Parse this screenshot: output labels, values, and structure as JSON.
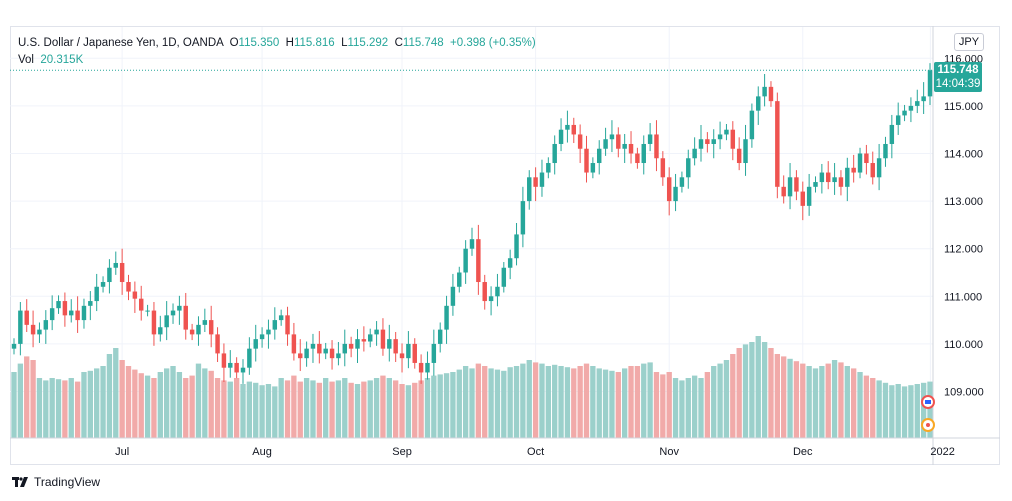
{
  "legend": {
    "symbol": "U.S. Dollar / Japanese Yen, 1D, OANDA",
    "o_label": "O",
    "o_value": "115.350",
    "h_label": "H",
    "h_value": "115.816",
    "l_label": "L",
    "l_value": "115.292",
    "c_label": "C",
    "c_value": "115.748",
    "change": "+0.398 (+0.35%)",
    "vol_label": "Vol",
    "vol_value": "20.315K"
  },
  "currency_button": "JPY",
  "current_price": {
    "price": "115.748",
    "countdown": "14:04:39"
  },
  "brand": "TradingView",
  "colors": {
    "up": "#26a69a",
    "down": "#ef5350",
    "up_vol": "#9bd0cb",
    "down_vol": "#f1aaa9",
    "grid": "#f0f3fa",
    "axis_text": "#131722"
  },
  "chart_data": {
    "type": "candlestick",
    "ylim": [
      108.0,
      116.0
    ],
    "y_ticks": [
      "116.000",
      "115.000",
      "114.000",
      "113.000",
      "112.000",
      "111.000",
      "110.000",
      "109.000"
    ],
    "y_tick_values": [
      116,
      115,
      114,
      113,
      112,
      111,
      110,
      109
    ],
    "x_ticks": [
      {
        "label": "Jul",
        "index": 17
      },
      {
        "label": "Aug",
        "index": 39
      },
      {
        "label": "Sep",
        "index": 61
      },
      {
        "label": "Oct",
        "index": 82
      },
      {
        "label": "Nov",
        "index": 103
      },
      {
        "label": "Dec",
        "index": 124
      },
      {
        "label": "2022",
        "index": 145
      }
    ],
    "candles_close": [
      110.0,
      110.7,
      110.4,
      110.2,
      110.3,
      110.5,
      110.75,
      110.9,
      110.6,
      110.7,
      110.5,
      110.8,
      110.9,
      111.2,
      111.3,
      111.6,
      111.7,
      111.3,
      111.1,
      110.95,
      110.7,
      110.7,
      110.2,
      110.35,
      110.6,
      110.7,
      110.8,
      110.3,
      110.2,
      110.4,
      110.5,
      110.2,
      109.8,
      109.5,
      109.6,
      109.4,
      109.5,
      109.9,
      110.1,
      110.2,
      110.3,
      110.5,
      110.6,
      110.2,
      109.8,
      109.7,
      109.9,
      110.0,
      109.8,
      109.9,
      109.7,
      109.8,
      110.0,
      109.9,
      110.1,
      110.05,
      110.2,
      110.3,
      109.9,
      110.1,
      109.8,
      109.7,
      110.0,
      109.6,
      109.4,
      109.6,
      110.0,
      110.3,
      110.8,
      111.2,
      111.5,
      112.0,
      112.2,
      111.3,
      110.9,
      111.0,
      111.2,
      111.6,
      111.8,
      112.3,
      113.0,
      113.5,
      113.3,
      113.6,
      113.8,
      114.2,
      114.5,
      114.6,
      114.4,
      114.1,
      113.6,
      113.8,
      114.1,
      114.3,
      114.4,
      114.1,
      114.2,
      114.0,
      113.8,
      114.2,
      114.4,
      113.9,
      113.5,
      113.0,
      113.3,
      113.5,
      113.9,
      114.1,
      114.3,
      114.2,
      114.3,
      114.4,
      114.5,
      114.1,
      113.8,
      114.3,
      114.9,
      115.2,
      115.4,
      115.1,
      113.3,
      113.1,
      113.5,
      113.2,
      112.9,
      113.3,
      113.4,
      113.6,
      113.4,
      113.5,
      113.3,
      113.7,
      113.6,
      114.0,
      113.8,
      113.5,
      113.9,
      114.2,
      114.6,
      114.8,
      114.9,
      115.0,
      115.1,
      115.2,
      115.748
    ],
    "volume": [
      0.55,
      0.62,
      0.68,
      0.65,
      0.5,
      0.48,
      0.5,
      0.49,
      0.48,
      0.5,
      0.47,
      0.55,
      0.56,
      0.58,
      0.6,
      0.7,
      0.75,
      0.65,
      0.6,
      0.57,
      0.54,
      0.52,
      0.5,
      0.55,
      0.58,
      0.6,
      0.55,
      0.5,
      0.52,
      0.62,
      0.58,
      0.56,
      0.5,
      0.48,
      0.47,
      0.5,
      0.45,
      0.47,
      0.46,
      0.44,
      0.45,
      0.43,
      0.5,
      0.48,
      0.52,
      0.47,
      0.5,
      0.48,
      0.46,
      0.5,
      0.47,
      0.48,
      0.5,
      0.46,
      0.45,
      0.47,
      0.48,
      0.5,
      0.52,
      0.5,
      0.48,
      0.45,
      0.44,
      0.46,
      0.48,
      0.5,
      0.52,
      0.53,
      0.54,
      0.55,
      0.57,
      0.6,
      0.58,
      0.62,
      0.6,
      0.58,
      0.57,
      0.56,
      0.59,
      0.6,
      0.62,
      0.65,
      0.63,
      0.62,
      0.6,
      0.61,
      0.6,
      0.59,
      0.58,
      0.6,
      0.62,
      0.6,
      0.58,
      0.57,
      0.56,
      0.55,
      0.58,
      0.6,
      0.6,
      0.62,
      0.63,
      0.55,
      0.53,
      0.55,
      0.5,
      0.48,
      0.5,
      0.52,
      0.5,
      0.55,
      0.6,
      0.62,
      0.65,
      0.7,
      0.75,
      0.78,
      0.8,
      0.85,
      0.8,
      0.75,
      0.7,
      0.68,
      0.66,
      0.64,
      0.62,
      0.6,
      0.58,
      0.6,
      0.62,
      0.65,
      0.63,
      0.6,
      0.58,
      0.55,
      0.52,
      0.5,
      0.48,
      0.46,
      0.44,
      0.45,
      0.43,
      0.44,
      0.45,
      0.46,
      0.47
    ]
  }
}
